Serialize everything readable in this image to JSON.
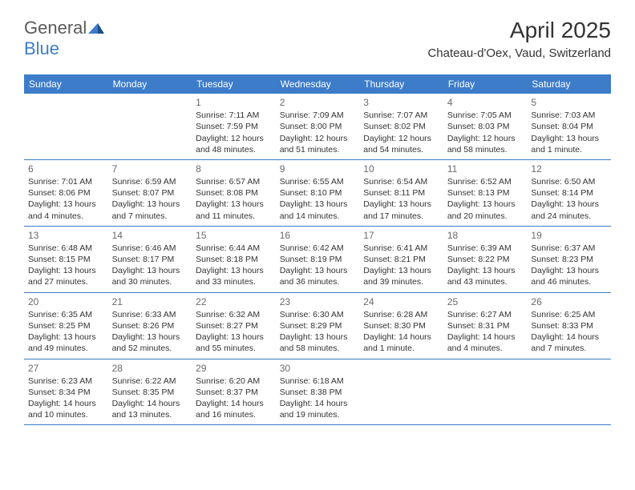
{
  "logo": {
    "text_gray": "General",
    "text_blue": "Blue"
  },
  "title": "April 2025",
  "location": "Chateau-d'Oex, Vaud, Switzerland",
  "colors": {
    "header_bg": "#3d7cc9",
    "header_text": "#ffffff",
    "border": "#3d7cc9",
    "text": "#333333",
    "daynum": "#6a6a6a",
    "logo_gray": "#5a5a5a",
    "logo_blue": "#3d7cc9",
    "background": "#ffffff"
  },
  "dow": [
    "Sunday",
    "Monday",
    "Tuesday",
    "Wednesday",
    "Thursday",
    "Friday",
    "Saturday"
  ],
  "weeks": [
    [
      null,
      null,
      {
        "n": "1",
        "sunrise": "7:11 AM",
        "sunset": "7:59 PM",
        "daylight": "12 hours and 48 minutes."
      },
      {
        "n": "2",
        "sunrise": "7:09 AM",
        "sunset": "8:00 PM",
        "daylight": "12 hours and 51 minutes."
      },
      {
        "n": "3",
        "sunrise": "7:07 AM",
        "sunset": "8:02 PM",
        "daylight": "12 hours and 54 minutes."
      },
      {
        "n": "4",
        "sunrise": "7:05 AM",
        "sunset": "8:03 PM",
        "daylight": "12 hours and 58 minutes."
      },
      {
        "n": "5",
        "sunrise": "7:03 AM",
        "sunset": "8:04 PM",
        "daylight": "13 hours and 1 minute."
      }
    ],
    [
      {
        "n": "6",
        "sunrise": "7:01 AM",
        "sunset": "8:06 PM",
        "daylight": "13 hours and 4 minutes."
      },
      {
        "n": "7",
        "sunrise": "6:59 AM",
        "sunset": "8:07 PM",
        "daylight": "13 hours and 7 minutes."
      },
      {
        "n": "8",
        "sunrise": "6:57 AM",
        "sunset": "8:08 PM",
        "daylight": "13 hours and 11 minutes."
      },
      {
        "n": "9",
        "sunrise": "6:55 AM",
        "sunset": "8:10 PM",
        "daylight": "13 hours and 14 minutes."
      },
      {
        "n": "10",
        "sunrise": "6:54 AM",
        "sunset": "8:11 PM",
        "daylight": "13 hours and 17 minutes."
      },
      {
        "n": "11",
        "sunrise": "6:52 AM",
        "sunset": "8:13 PM",
        "daylight": "13 hours and 20 minutes."
      },
      {
        "n": "12",
        "sunrise": "6:50 AM",
        "sunset": "8:14 PM",
        "daylight": "13 hours and 24 minutes."
      }
    ],
    [
      {
        "n": "13",
        "sunrise": "6:48 AM",
        "sunset": "8:15 PM",
        "daylight": "13 hours and 27 minutes."
      },
      {
        "n": "14",
        "sunrise": "6:46 AM",
        "sunset": "8:17 PM",
        "daylight": "13 hours and 30 minutes."
      },
      {
        "n": "15",
        "sunrise": "6:44 AM",
        "sunset": "8:18 PM",
        "daylight": "13 hours and 33 minutes."
      },
      {
        "n": "16",
        "sunrise": "6:42 AM",
        "sunset": "8:19 PM",
        "daylight": "13 hours and 36 minutes."
      },
      {
        "n": "17",
        "sunrise": "6:41 AM",
        "sunset": "8:21 PM",
        "daylight": "13 hours and 39 minutes."
      },
      {
        "n": "18",
        "sunrise": "6:39 AM",
        "sunset": "8:22 PM",
        "daylight": "13 hours and 43 minutes."
      },
      {
        "n": "19",
        "sunrise": "6:37 AM",
        "sunset": "8:23 PM",
        "daylight": "13 hours and 46 minutes."
      }
    ],
    [
      {
        "n": "20",
        "sunrise": "6:35 AM",
        "sunset": "8:25 PM",
        "daylight": "13 hours and 49 minutes."
      },
      {
        "n": "21",
        "sunrise": "6:33 AM",
        "sunset": "8:26 PM",
        "daylight": "13 hours and 52 minutes."
      },
      {
        "n": "22",
        "sunrise": "6:32 AM",
        "sunset": "8:27 PM",
        "daylight": "13 hours and 55 minutes."
      },
      {
        "n": "23",
        "sunrise": "6:30 AM",
        "sunset": "8:29 PM",
        "daylight": "13 hours and 58 minutes."
      },
      {
        "n": "24",
        "sunrise": "6:28 AM",
        "sunset": "8:30 PM",
        "daylight": "14 hours and 1 minute."
      },
      {
        "n": "25",
        "sunrise": "6:27 AM",
        "sunset": "8:31 PM",
        "daylight": "14 hours and 4 minutes."
      },
      {
        "n": "26",
        "sunrise": "6:25 AM",
        "sunset": "8:33 PM",
        "daylight": "14 hours and 7 minutes."
      }
    ],
    [
      {
        "n": "27",
        "sunrise": "6:23 AM",
        "sunset": "8:34 PM",
        "daylight": "14 hours and 10 minutes."
      },
      {
        "n": "28",
        "sunrise": "6:22 AM",
        "sunset": "8:35 PM",
        "daylight": "14 hours and 13 minutes."
      },
      {
        "n": "29",
        "sunrise": "6:20 AM",
        "sunset": "8:37 PM",
        "daylight": "14 hours and 16 minutes."
      },
      {
        "n": "30",
        "sunrise": "6:18 AM",
        "sunset": "8:38 PM",
        "daylight": "14 hours and 19 minutes."
      },
      null,
      null,
      null
    ]
  ],
  "labels": {
    "sunrise": "Sunrise: ",
    "sunset": "Sunset: ",
    "daylight": "Daylight: "
  }
}
